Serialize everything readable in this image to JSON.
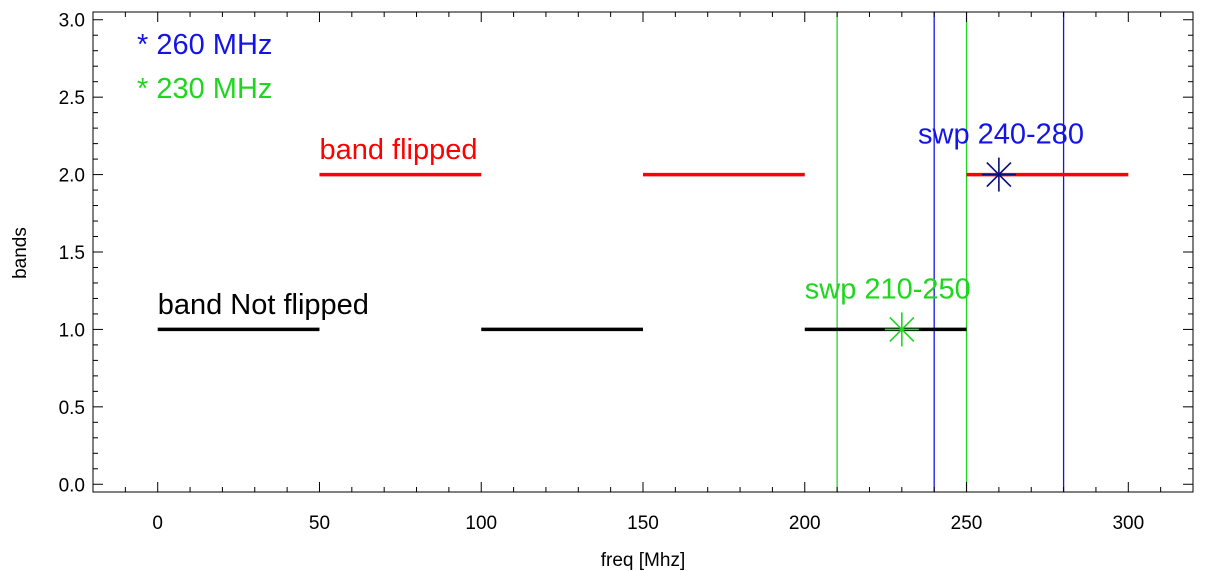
{
  "chart_data": {
    "type": "line",
    "title": "",
    "xlabel": "freq [Mhz]",
    "ylabel": "bands",
    "xlim": [
      -20,
      320
    ],
    "ylim": [
      -0.05,
      3.05
    ],
    "x_ticks": [
      0,
      50,
      100,
      150,
      200,
      250,
      300
    ],
    "x_tick_labels": [
      "0",
      "50",
      "100",
      "150",
      "200",
      "250",
      "300"
    ],
    "y_ticks": [
      0.0,
      0.5,
      1.0,
      1.5,
      2.0,
      2.5,
      3.0
    ],
    "y_tick_labels": [
      "0.0",
      "0.5",
      "1.0",
      "1.5",
      "2.0",
      "2.5",
      "3.0"
    ],
    "grid": false,
    "colors": {
      "black": "#000000",
      "red": "#ff0000",
      "blue": "#1414e6",
      "green": "#1fd61f",
      "navy": "#0a0a80"
    },
    "segments": [
      {
        "x": [
          0,
          50
        ],
        "y": [
          1,
          1
        ],
        "color": "black"
      },
      {
        "x": [
          100,
          150
        ],
        "y": [
          1,
          1
        ],
        "color": "black"
      },
      {
        "x": [
          200,
          250
        ],
        "y": [
          1,
          1
        ],
        "color": "black"
      },
      {
        "x": [
          50,
          100
        ],
        "y": [
          2,
          2
        ],
        "color": "red"
      },
      {
        "x": [
          150,
          200
        ],
        "y": [
          2,
          2
        ],
        "color": "red"
      },
      {
        "x": [
          250,
          300
        ],
        "y": [
          2,
          2
        ],
        "color": "red"
      }
    ],
    "vertical_lines": [
      {
        "x": 210,
        "color": "green"
      },
      {
        "x": 250,
        "color": "green"
      },
      {
        "x": 240,
        "color": "blue"
      },
      {
        "x": 280,
        "color": "blue"
      }
    ],
    "markers": [
      {
        "x": 230,
        "y": 1,
        "color": "green",
        "symbol": "asterisk"
      },
      {
        "x": 260,
        "y": 2,
        "color": "navy",
        "symbol": "asterisk"
      }
    ],
    "annotations": [
      {
        "text": "band Not flipped",
        "x": 0,
        "y": 1.1,
        "color": "black"
      },
      {
        "text": "band flipped",
        "x": 50,
        "y": 2.1,
        "color": "red"
      },
      {
        "text": "swp 210-250",
        "x": 200,
        "y": 1.2,
        "color": "green"
      },
      {
        "text": "swp 240-280",
        "x": 235,
        "y": 2.2,
        "color": "blue"
      }
    ],
    "legend": {
      "placement": "top-left",
      "entries": [
        {
          "text": "* 260 MHz",
          "color": "blue"
        },
        {
          "text": "* 230 MHz",
          "color": "green"
        }
      ]
    }
  }
}
